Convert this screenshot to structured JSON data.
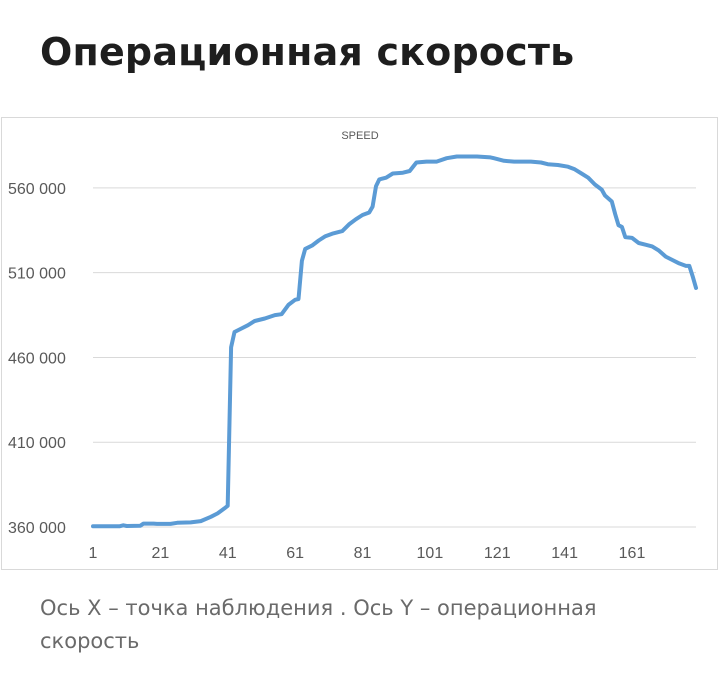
{
  "page": {
    "title": "Операционная скорость",
    "caption": "Ось X – точка наблюдения . Ось Y – операционная скорость"
  },
  "colors": {
    "line": "#5b9bd5",
    "grid": "#d9d9d9",
    "tick_text": "#595959",
    "title_text": "#1e1e1e",
    "caption_text": "#6a6a6a"
  },
  "chart_data": {
    "type": "line",
    "title": "SPEED",
    "xlabel": "",
    "ylabel": "",
    "grid": "horizontal",
    "legend": "none",
    "xlim": [
      1,
      180
    ],
    "ylim": [
      360000,
      580000
    ],
    "x_ticks": [
      {
        "value": 1,
        "label": "1"
      },
      {
        "value": 21,
        "label": "21"
      },
      {
        "value": 41,
        "label": "41"
      },
      {
        "value": 61,
        "label": "61"
      },
      {
        "value": 81,
        "label": "81"
      },
      {
        "value": 101,
        "label": "101"
      },
      {
        "value": 121,
        "label": "121"
      },
      {
        "value": 141,
        "label": "141"
      },
      {
        "value": 161,
        "label": "161"
      }
    ],
    "y_ticks": [
      {
        "value": 360000,
        "label": "360 000"
      },
      {
        "value": 410000,
        "label": "410 000"
      },
      {
        "value": 460000,
        "label": "460 000"
      },
      {
        "value": 510000,
        "label": "510 000"
      },
      {
        "value": 560000,
        "label": "560 000"
      }
    ],
    "series": [
      {
        "points": [
          [
            1,
            360500
          ],
          [
            9,
            360500
          ],
          [
            10,
            361000
          ],
          [
            11,
            360600
          ],
          [
            15,
            360700
          ],
          [
            16,
            362000
          ],
          [
            19,
            362000
          ],
          [
            20,
            361800
          ],
          [
            24,
            361800
          ],
          [
            26,
            362500
          ],
          [
            30,
            362700
          ],
          [
            33,
            363500
          ],
          [
            36,
            366000
          ],
          [
            38,
            368000
          ],
          [
            40,
            371000
          ],
          [
            41,
            372500
          ],
          [
            42,
            466000
          ],
          [
            43,
            475000
          ],
          [
            45,
            477000
          ],
          [
            47,
            479000
          ],
          [
            49,
            481500
          ],
          [
            52,
            483000
          ],
          [
            55,
            485000
          ],
          [
            57,
            485500
          ],
          [
            59,
            491000
          ],
          [
            61,
            494000
          ],
          [
            62,
            494500
          ],
          [
            63,
            517000
          ],
          [
            64,
            524000
          ],
          [
            66,
            526000
          ],
          [
            68,
            529000
          ],
          [
            70,
            531500
          ],
          [
            72,
            533000
          ],
          [
            75,
            534500
          ],
          [
            77,
            538500
          ],
          [
            79,
            541500
          ],
          [
            81,
            544000
          ],
          [
            83,
            545500
          ],
          [
            84,
            549000
          ],
          [
            85,
            561000
          ],
          [
            86,
            565000
          ],
          [
            88,
            566000
          ],
          [
            90,
            568500
          ],
          [
            93,
            569000
          ],
          [
            95,
            570000
          ],
          [
            97,
            575000
          ],
          [
            100,
            575500
          ],
          [
            103,
            575500
          ],
          [
            106,
            577500
          ],
          [
            109,
            578500
          ],
          [
            115,
            578500
          ],
          [
            119,
            578000
          ],
          [
            120,
            577500
          ],
          [
            123,
            576000
          ],
          [
            126,
            575500
          ],
          [
            131,
            575500
          ],
          [
            134,
            575000
          ],
          [
            136,
            574000
          ],
          [
            139,
            573500
          ],
          [
            142,
            572500
          ],
          [
            144,
            571000
          ],
          [
            146,
            568500
          ],
          [
            148,
            566000
          ],
          [
            150,
            562000
          ],
          [
            152,
            559000
          ],
          [
            153,
            555500
          ],
          [
            155,
            552000
          ],
          [
            156,
            544500
          ],
          [
            157,
            538000
          ],
          [
            158,
            537000
          ],
          [
            159,
            531000
          ],
          [
            161,
            530500
          ],
          [
            163,
            527500
          ],
          [
            165,
            526500
          ],
          [
            167,
            525500
          ],
          [
            169,
            523000
          ],
          [
            171,
            519500
          ],
          [
            173,
            517500
          ],
          [
            175,
            515500
          ],
          [
            177,
            514000
          ],
          [
            178,
            514000
          ],
          [
            179,
            508000
          ],
          [
            180,
            501000
          ]
        ]
      }
    ]
  }
}
